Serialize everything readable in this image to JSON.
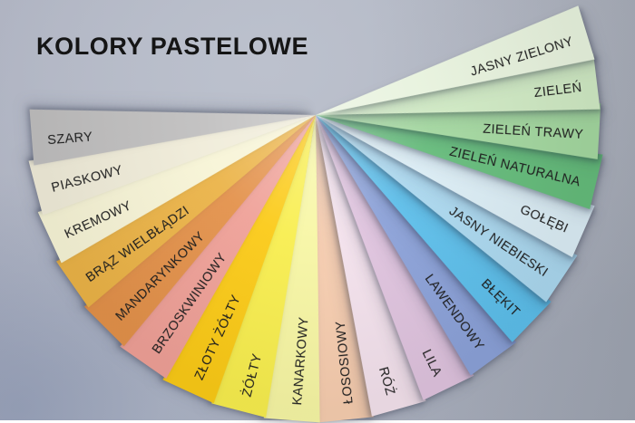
{
  "title": "KOLORY PASTELOWE",
  "style": {
    "background_light": "#bcc1cd",
    "background_dark_corner": "#8f9cb8",
    "background_gray_corner": "#9da4ad",
    "title_color": "#151515",
    "label_color": "#1e1e1e"
  },
  "fan": {
    "sheets": [
      {
        "label": "SZARY",
        "color": "#c0bfbf"
      },
      {
        "label": "PIASKOWY",
        "color": "#f0ecd9"
      },
      {
        "label": "KREMOWY",
        "color": "#f7f4d6"
      },
      {
        "label": "BRĄZ WIELBŁĄDZI",
        "color": "#ebb347"
      },
      {
        "label": "MANDARYNKOWY",
        "color": "#e3914a"
      },
      {
        "label": "BRZOSKWINIOWY",
        "color": "#efa097"
      },
      {
        "label": "ZŁOTY ŻÓŁTY",
        "color": "#fbca16"
      },
      {
        "label": "ŻÓŁTY",
        "color": "#f8ee4e"
      },
      {
        "label": "KANARKOWY",
        "color": "#f7f6a4"
      },
      {
        "label": "ŁOSOSIOWY",
        "color": "#f7cdaf"
      },
      {
        "label": "RÓŻ",
        "color": "#f3e1ec"
      },
      {
        "label": "LILA",
        "color": "#dfc3de"
      },
      {
        "label": "LAWENDOWY",
        "color": "#8ba1d8"
      },
      {
        "label": "BŁĘKIT",
        "color": "#5cbeea"
      },
      {
        "label": "JASNY NIEBIESKI",
        "color": "#aad7ee"
      },
      {
        "label": "GOŁĘBI",
        "color": "#daecf4"
      },
      {
        "label": "ZIELEŃ NATURALNA",
        "color": "#64bb7a"
      },
      {
        "label": "ZIELEŃ TRAWY",
        "color": "#a3d79f"
      },
      {
        "label": "ZIELEŃ",
        "color": "#cfe9c3"
      },
      {
        "label": "JASNY ZIELONY",
        "color": "#e7f2dd"
      }
    ]
  }
}
